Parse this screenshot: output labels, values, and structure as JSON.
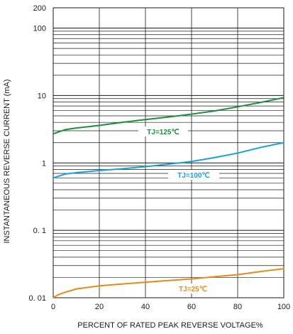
{
  "chart_data": {
    "type": "line",
    "title": "",
    "xlabel": "PERCENT OF RATED PEAK REVERSE VOLTAGE%",
    "ylabel": "INSTANTANEOUS REVERSE CURRENT (mA)",
    "xlim": [
      0,
      100
    ],
    "ylim": [
      0.01,
      200
    ],
    "yscale": "log",
    "grid": true,
    "legend": "inline labels",
    "x_ticks": [
      0,
      20,
      40,
      60,
      80,
      100
    ],
    "x_tick_labels": [
      "0",
      "20",
      "40",
      "60",
      "80",
      "100"
    ],
    "y_ticks": [
      0.01,
      0.1,
      1,
      10,
      100,
      200
    ],
    "y_tick_labels": [
      "0. 01",
      "0. 1",
      "1",
      "10",
      "100",
      "200"
    ],
    "series": [
      {
        "name": "TJ=125℃",
        "color": "#1a8f3c",
        "x": [
          0,
          5,
          10,
          20,
          30,
          40,
          50,
          60,
          70,
          80,
          90,
          100
        ],
        "y": [
          2.7,
          3.1,
          3.3,
          3.6,
          4.0,
          4.4,
          4.8,
          5.3,
          5.9,
          6.8,
          7.9,
          9.3
        ]
      },
      {
        "name": "TJ=100℃",
        "color": "#1aa0dc",
        "x": [
          0,
          5,
          10,
          20,
          30,
          40,
          50,
          60,
          70,
          80,
          90,
          100
        ],
        "y": [
          0.6,
          0.68,
          0.72,
          0.77,
          0.82,
          0.88,
          0.96,
          1.05,
          1.2,
          1.4,
          1.7,
          2.0
        ]
      },
      {
        "name": "TJ=25℃",
        "color": "#e88a1a",
        "x": [
          0,
          2,
          5,
          10,
          20,
          30,
          40,
          50,
          60,
          70,
          80,
          90,
          100
        ],
        "y": [
          0.01,
          0.011,
          0.012,
          0.0135,
          0.015,
          0.016,
          0.017,
          0.018,
          0.019,
          0.0205,
          0.022,
          0.0245,
          0.027
        ]
      }
    ]
  }
}
